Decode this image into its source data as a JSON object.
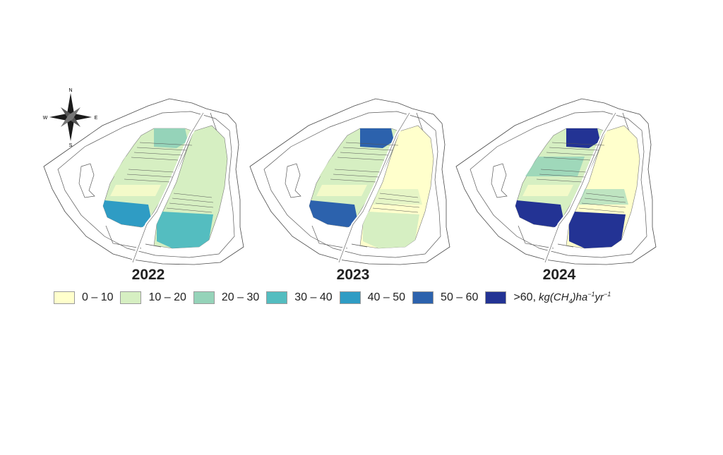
{
  "compass": {
    "n": "N",
    "s": "S",
    "e": "E",
    "w": "W"
  },
  "maps": [
    {
      "year": "2022",
      "class_levels": {
        "north_field": 3,
        "middle_band": 2,
        "west_tip": 5,
        "east_field": 2,
        "east_lower_band": 4
      }
    },
    {
      "year": "2023",
      "class_levels": {
        "north_field": 6,
        "middle_band": 2,
        "west_tip": 6,
        "east_field": 1,
        "east_lower_band": 2
      }
    },
    {
      "year": "2024",
      "class_levels": {
        "north_field": 7,
        "middle_band": 3,
        "west_tip": 7,
        "east_field": 1,
        "east_lower_band": 7
      }
    }
  ],
  "legend": {
    "classes": [
      {
        "label": "0 – 10",
        "color": "#ffffcc"
      },
      {
        "label": "10 – 20",
        "color": "#d6efc2"
      },
      {
        "label": "20 – 30",
        "color": "#95d3b9"
      },
      {
        "label": "30 – 40",
        "color": "#54bdc0"
      },
      {
        "label": "40 – 50",
        "color": "#2f9cc4"
      },
      {
        "label": "50 – 60",
        "color": "#2c62ad"
      },
      {
        "label": ">60,",
        "color": "#233394"
      }
    ],
    "unit": {
      "main": "kg(CH",
      "sub": "4",
      "mid": ")ha",
      "sup1": "−1",
      "mid2": "yr",
      "sup2": "−1"
    }
  }
}
